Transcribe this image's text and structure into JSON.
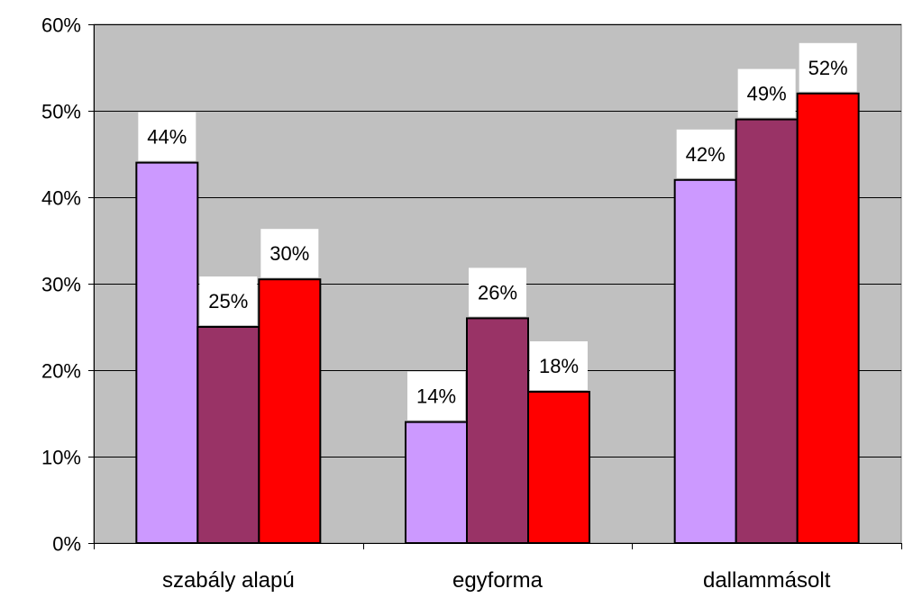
{
  "chart_data": {
    "type": "bar",
    "title": "",
    "xlabel": "",
    "ylabel": "",
    "categories": [
      "szabály alapú",
      "egyforma",
      "dallammásolt"
    ],
    "series": [
      {
        "values": [
          44,
          14,
          42
        ],
        "labels": [
          "44%",
          "14%",
          "42%"
        ],
        "color": "#cc99ff"
      },
      {
        "values": [
          25,
          26,
          49
        ],
        "labels": [
          "25%",
          "26%",
          "49%"
        ],
        "color": "#993366"
      },
      {
        "values": [
          30.5,
          17.5,
          52
        ],
        "labels": [
          "30%",
          "18%",
          "52%"
        ],
        "color": "#ff0000"
      }
    ],
    "ylim": [
      0,
      60
    ],
    "yticks": [
      0,
      10,
      20,
      30,
      40,
      50,
      60
    ],
    "ytick_labels": [
      "0%",
      "10%",
      "20%",
      "30%",
      "40%",
      "50%",
      "60%"
    ],
    "grid": true,
    "legend": "none",
    "plot_background": "#c0c0c0"
  }
}
